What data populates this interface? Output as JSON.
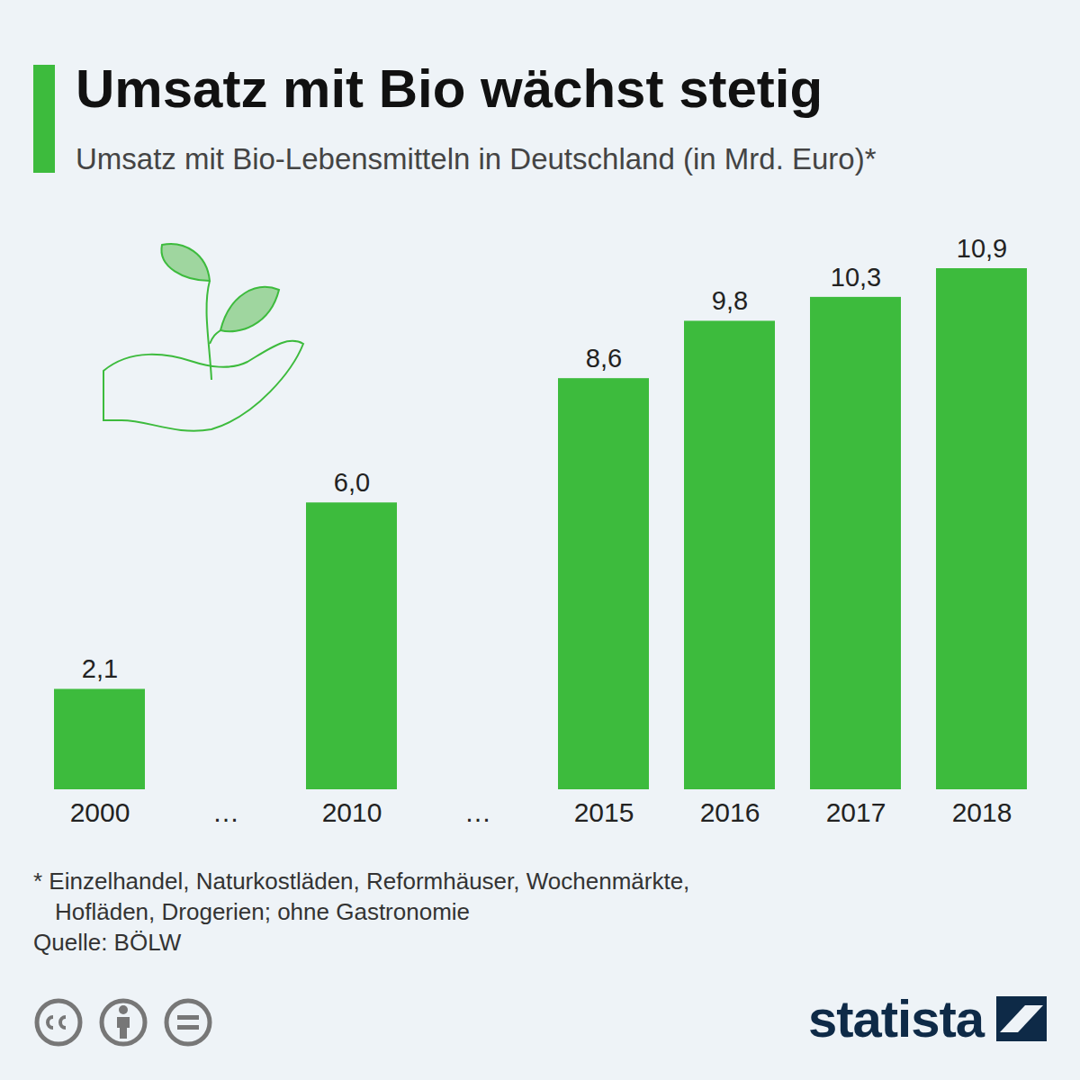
{
  "chart_data": {
    "type": "bar",
    "title": "Umsatz mit Bio wächst stetig",
    "subtitle": "Umsatz mit Bio-Lebensmitteln in Deutschland (in Mrd. Euro)*",
    "categories": [
      "2000",
      "…",
      "2010",
      "…",
      "2015",
      "2016",
      "2017",
      "2018"
    ],
    "values": [
      2.1,
      null,
      6.0,
      null,
      8.6,
      9.8,
      10.3,
      10.9
    ],
    "value_labels": [
      "2,1",
      null,
      "6,0",
      null,
      "8,6",
      "9,8",
      "10,3",
      "10,9"
    ],
    "color": "#3dbb3d",
    "ylim": [
      0,
      10.9
    ],
    "grid": false,
    "tick_labels": "x",
    "data_labels": true,
    "footnote": [
      "* Einzelhandel, Naturkostläden, Reformhäuser, Wochenmärkte,",
      "Hofläden, Drogerien; ohne Gastronomie"
    ],
    "source": "Quelle: BÖLW",
    "brand": "statista"
  }
}
